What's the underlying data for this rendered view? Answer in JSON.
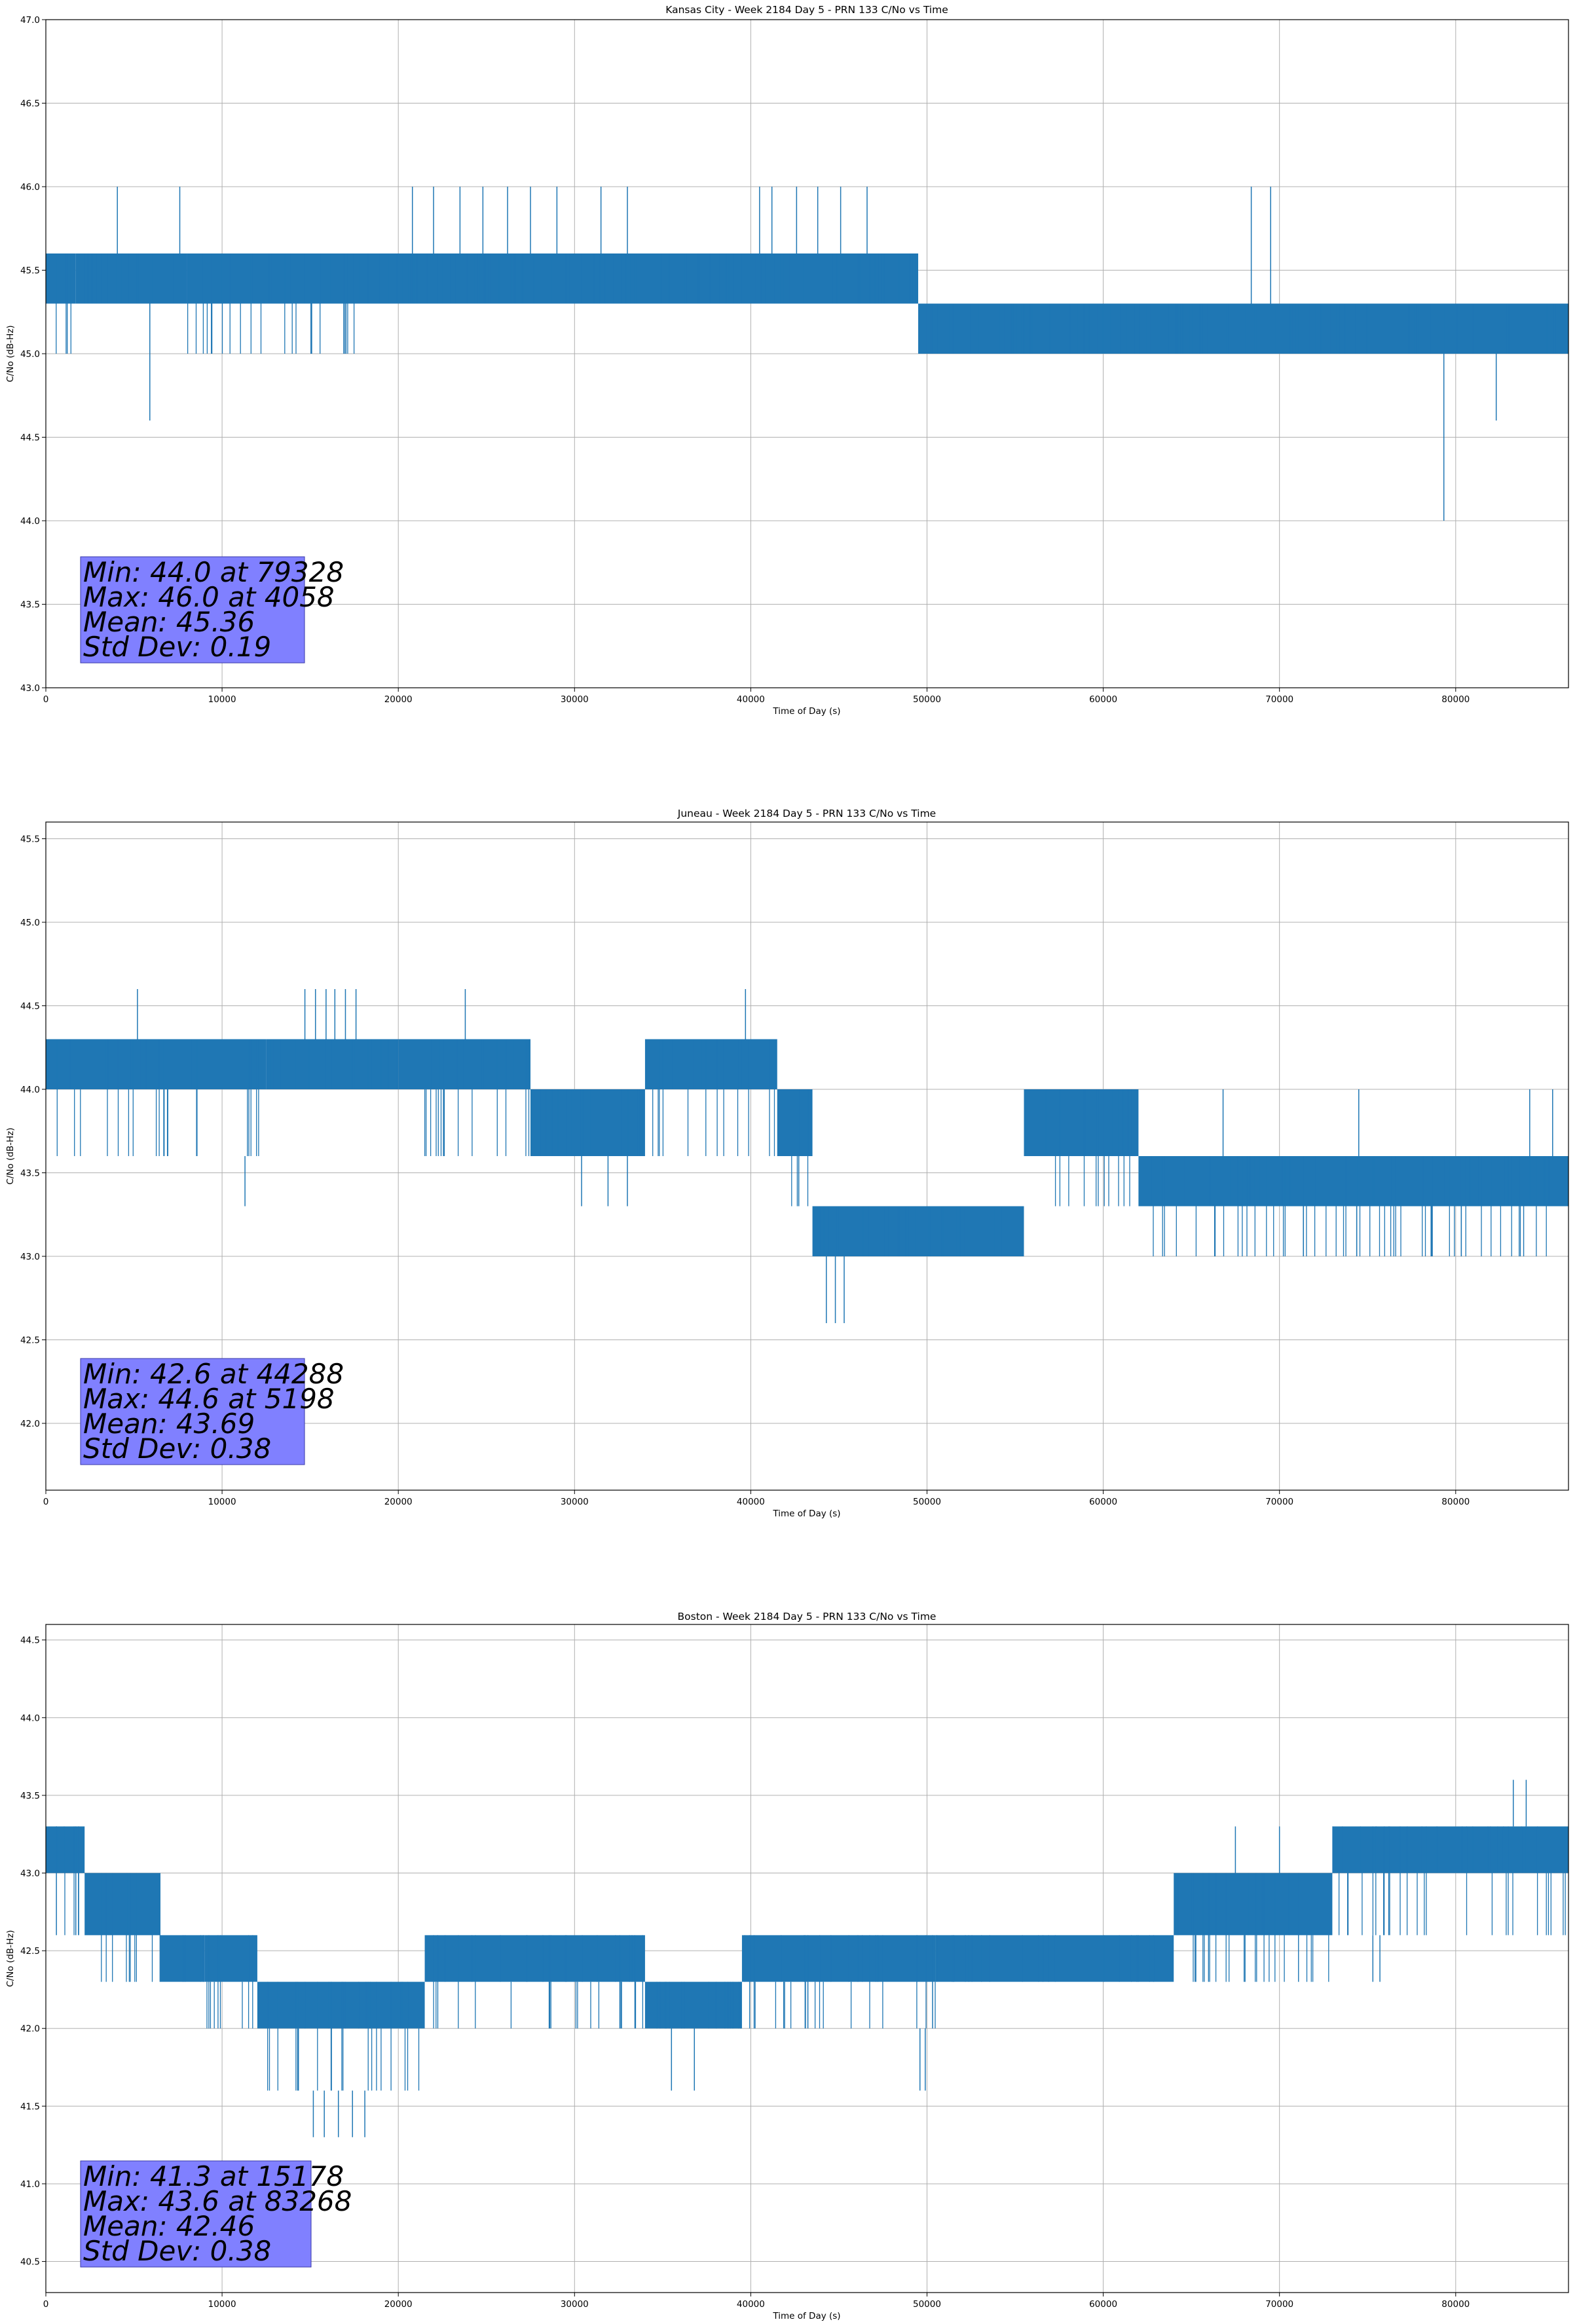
{
  "chart_data": [
    {
      "type": "line",
      "title": "Kansas City - Week 2184 Day 5 - PRN 133 C/No vs Time",
      "xlabel": "Time of Day (s)",
      "ylabel": "C/No (dB-Hz)",
      "xlim": [
        0,
        86400
      ],
      "ylim": [
        43.0,
        47.0
      ],
      "xticks": [
        0,
        10000,
        20000,
        30000,
        40000,
        50000,
        60000,
        70000,
        80000
      ],
      "yticks": [
        43.0,
        43.5,
        44.0,
        44.5,
        45.0,
        45.5,
        46.0,
        46.5,
        47.0
      ],
      "grid": true,
      "color": "#1f77b4",
      "segments": [
        {
          "start": 0,
          "end": 1700,
          "levels": [
            45.0,
            45.3,
            45.6
          ]
        },
        {
          "start": 1700,
          "end": 8000,
          "levels": [
            45.3,
            45.6
          ]
        },
        {
          "start": 8000,
          "end": 17500,
          "levels": [
            45.0,
            45.3,
            45.6
          ]
        },
        {
          "start": 17500,
          "end": 49500,
          "levels": [
            45.3,
            45.6
          ]
        },
        {
          "start": 49500,
          "end": 86400,
          "levels": [
            45.0,
            45.3
          ]
        }
      ],
      "spikes": [
        {
          "x": 4058,
          "y": 46.0
        },
        {
          "x": 5900,
          "y": 44.6
        },
        {
          "x": 7600,
          "y": 46.0
        },
        {
          "x": 20800,
          "y": 46.0
        },
        {
          "x": 22000,
          "y": 46.0
        },
        {
          "x": 23500,
          "y": 46.0
        },
        {
          "x": 24800,
          "y": 46.0
        },
        {
          "x": 26200,
          "y": 46.0
        },
        {
          "x": 27500,
          "y": 46.0
        },
        {
          "x": 29000,
          "y": 46.0
        },
        {
          "x": 31500,
          "y": 46.0
        },
        {
          "x": 33000,
          "y": 46.0
        },
        {
          "x": 40500,
          "y": 46.0
        },
        {
          "x": 41200,
          "y": 46.0
        },
        {
          "x": 42600,
          "y": 46.0
        },
        {
          "x": 43800,
          "y": 46.0
        },
        {
          "x": 45100,
          "y": 46.0
        },
        {
          "x": 46600,
          "y": 46.0
        },
        {
          "x": 68400,
          "y": 46.0
        },
        {
          "x": 69500,
          "y": 46.0
        },
        {
          "x": 79328,
          "y": 44.0
        },
        {
          "x": 82300,
          "y": 44.6
        }
      ],
      "stats": {
        "min_text": "Min: 44.0 at 79328",
        "max_text": "Max: 46.0 at 4058",
        "mean_text": "Mean: 45.36",
        "std_text": "Std Dev: 0.19"
      }
    },
    {
      "type": "line",
      "title": "Juneau - Week 2184 Day 5 - PRN 133 C/No vs Time",
      "xlabel": "Time of Day (s)",
      "ylabel": "C/No (dB-Hz)",
      "xlim": [
        0,
        86400
      ],
      "ylim": [
        41.6,
        45.6
      ],
      "xticks": [
        0,
        10000,
        20000,
        30000,
        40000,
        50000,
        60000,
        70000,
        80000
      ],
      "yticks": [
        42.0,
        42.5,
        43.0,
        43.5,
        44.0,
        44.5,
        45.0,
        45.5
      ],
      "grid": true,
      "color": "#1f77b4",
      "segments": [
        {
          "start": 0,
          "end": 12500,
          "levels": [
            43.6,
            44.0,
            44.3
          ]
        },
        {
          "start": 12500,
          "end": 20000,
          "levels": [
            44.0,
            44.3
          ]
        },
        {
          "start": 20000,
          "end": 27500,
          "levels": [
            43.6,
            44.0,
            44.3
          ]
        },
        {
          "start": 27500,
          "end": 34000,
          "levels": [
            43.6,
            44.0
          ]
        },
        {
          "start": 34000,
          "end": 41500,
          "levels": [
            43.6,
            44.0,
            44.3
          ]
        },
        {
          "start": 41500,
          "end": 43500,
          "levels": [
            43.3,
            43.6,
            44.0
          ]
        },
        {
          "start": 43500,
          "end": 55500,
          "levels": [
            43.0,
            43.3
          ]
        },
        {
          "start": 55500,
          "end": 62000,
          "levels": [
            43.3,
            43.6,
            44.0
          ]
        },
        {
          "start": 62000,
          "end": 86400,
          "levels": [
            43.0,
            43.3,
            43.6
          ]
        }
      ],
      "spikes": [
        {
          "x": 5198,
          "y": 44.6
        },
        {
          "x": 11300,
          "y": 43.3
        },
        {
          "x": 14700,
          "y": 44.6
        },
        {
          "x": 15300,
          "y": 44.6
        },
        {
          "x": 15900,
          "y": 44.6
        },
        {
          "x": 16400,
          "y": 44.6
        },
        {
          "x": 17000,
          "y": 44.6
        },
        {
          "x": 17600,
          "y": 44.6
        },
        {
          "x": 23800,
          "y": 44.6
        },
        {
          "x": 39700,
          "y": 44.6
        },
        {
          "x": 44288,
          "y": 42.6
        },
        {
          "x": 44800,
          "y": 42.6
        },
        {
          "x": 45300,
          "y": 42.6
        },
        {
          "x": 30400,
          "y": 43.3
        },
        {
          "x": 31900,
          "y": 43.3
        },
        {
          "x": 33000,
          "y": 43.3
        },
        {
          "x": 66800,
          "y": 44.0
        },
        {
          "x": 74500,
          "y": 44.0
        },
        {
          "x": 84200,
          "y": 44.0
        },
        {
          "x": 85500,
          "y": 44.0
        }
      ],
      "stats": {
        "min_text": "Min: 42.6 at 44288",
        "max_text": "Max: 44.6 at 5198",
        "mean_text": "Mean: 43.69",
        "std_text": "Std Dev: 0.38"
      }
    },
    {
      "type": "line",
      "title": "Boston - Week 2184 Day 5 - PRN 133 C/No vs Time",
      "xlabel": "Time of Day (s)",
      "ylabel": "C/No (dB-Hz)",
      "xlim": [
        0,
        86400
      ],
      "ylim": [
        40.3,
        44.6
      ],
      "xticks": [
        0,
        10000,
        20000,
        30000,
        40000,
        50000,
        60000,
        70000,
        80000
      ],
      "yticks": [
        40.5,
        41.0,
        41.5,
        42.0,
        42.5,
        43.0,
        43.5,
        44.0,
        44.5
      ],
      "grid": true,
      "color": "#1f77b4",
      "segments": [
        {
          "start": 0,
          "end": 2200,
          "levels": [
            42.6,
            43.0,
            43.3
          ]
        },
        {
          "start": 2200,
          "end": 6500,
          "levels": [
            42.3,
            42.6,
            43.0
          ]
        },
        {
          "start": 6500,
          "end": 9000,
          "levels": [
            42.3,
            42.6
          ]
        },
        {
          "start": 9000,
          "end": 12000,
          "levels": [
            42.0,
            42.3,
            42.6
          ]
        },
        {
          "start": 12000,
          "end": 17000,
          "levels": [
            41.6,
            42.0,
            42.3
          ]
        },
        {
          "start": 17000,
          "end": 21500,
          "levels": [
            41.6,
            42.0,
            42.3
          ]
        },
        {
          "start": 21500,
          "end": 34000,
          "levels": [
            42.0,
            42.3,
            42.6
          ]
        },
        {
          "start": 34000,
          "end": 39500,
          "levels": [
            42.0,
            42.3
          ]
        },
        {
          "start": 39500,
          "end": 50500,
          "levels": [
            42.0,
            42.3,
            42.6
          ]
        },
        {
          "start": 50500,
          "end": 64000,
          "levels": [
            42.3,
            42.6
          ]
        },
        {
          "start": 64000,
          "end": 73000,
          "levels": [
            42.3,
            42.6,
            43.0
          ]
        },
        {
          "start": 73000,
          "end": 86400,
          "levels": [
            42.6,
            43.0,
            43.3
          ]
        }
      ],
      "spikes": [
        {
          "x": 600,
          "y": 43.3
        },
        {
          "x": 1700,
          "y": 43.3
        },
        {
          "x": 15178,
          "y": 41.3
        },
        {
          "x": 15800,
          "y": 41.3
        },
        {
          "x": 16600,
          "y": 41.3
        },
        {
          "x": 17400,
          "y": 41.3
        },
        {
          "x": 18100,
          "y": 41.3
        },
        {
          "x": 35500,
          "y": 41.6
        },
        {
          "x": 36800,
          "y": 41.6
        },
        {
          "x": 49600,
          "y": 41.6
        },
        {
          "x": 49900,
          "y": 41.6
        },
        {
          "x": 67500,
          "y": 43.3
        },
        {
          "x": 70000,
          "y": 43.3
        },
        {
          "x": 75300,
          "y": 42.3
        },
        {
          "x": 75700,
          "y": 42.3
        },
        {
          "x": 83268,
          "y": 43.6
        },
        {
          "x": 84000,
          "y": 43.6
        }
      ],
      "stats": {
        "min_text": "Min: 41.3 at 15178",
        "max_text": "Max: 43.6 at 83268",
        "mean_text": "Mean: 42.46",
        "std_text": "Std Dev: 0.38"
      }
    }
  ]
}
